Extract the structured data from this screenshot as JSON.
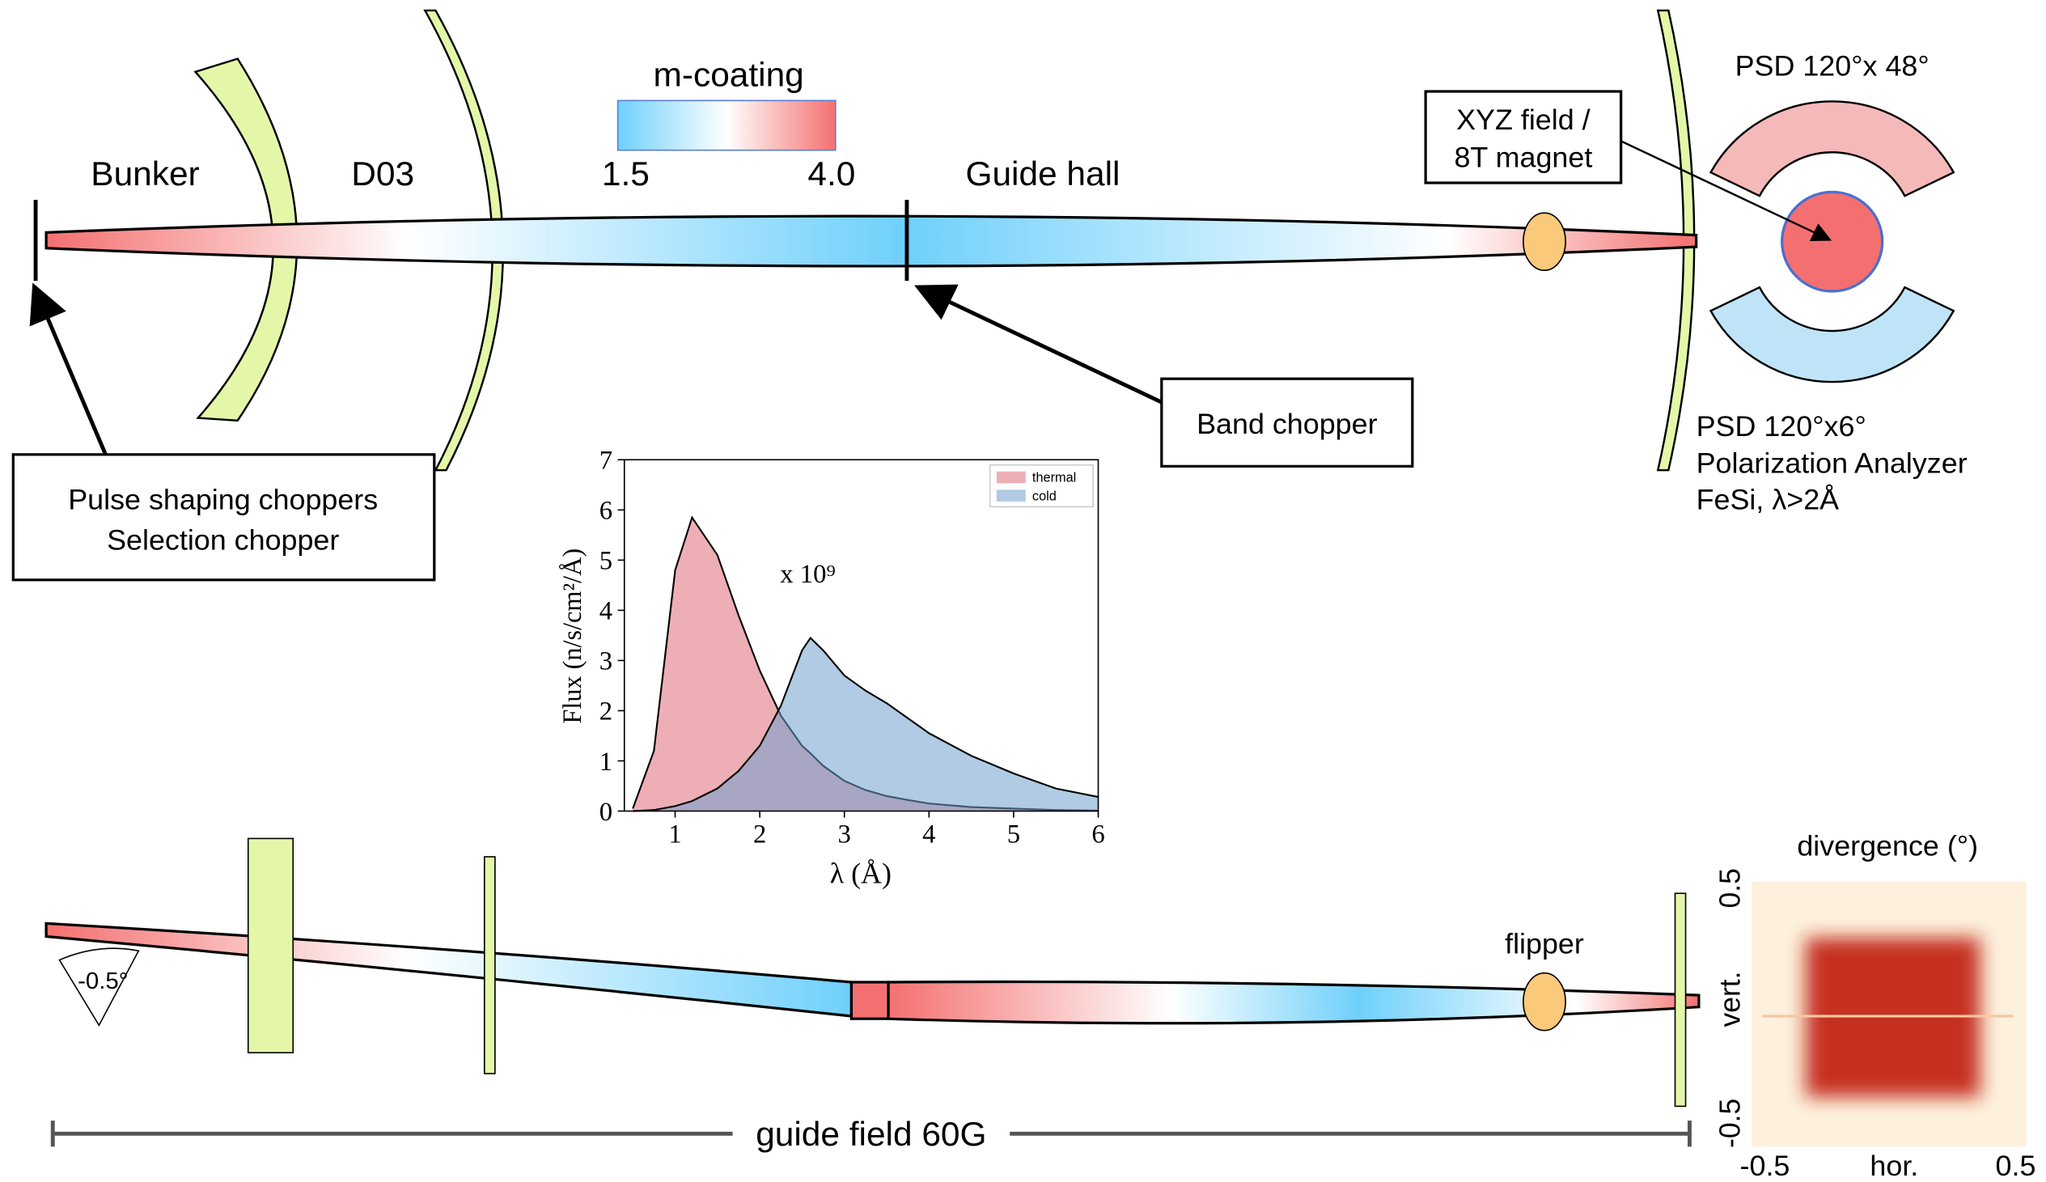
{
  "top": {
    "bunker": "Bunker",
    "d03": "D03",
    "coating_title": "m-coating",
    "coating_min": "1.5",
    "coating_max": "4.0",
    "guide_hall": "Guide hall",
    "magnet_box": [
      "XYZ field /",
      "8T  magnet"
    ],
    "psd_top": "PSD 120°x 48°",
    "band_chopper": "Band chopper",
    "psd_bottom": [
      "PSD 120°x6°",
      "Polarization Analyzer",
      "FeSi,  λ>2Å"
    ],
    "pulse_box": [
      "Pulse shaping choppers",
      "Selection chopper"
    ]
  },
  "bottom": {
    "angle": "-0.5°",
    "flipper": "flipper",
    "guide_field": "guide field 60G"
  },
  "divergence": {
    "title": "divergence (°)",
    "y_label": "vert.",
    "x_label": "hor.",
    "y_top": "0.5",
    "y_bottom": "-0.5",
    "x_left": "-0.5",
    "x_right": "0.5"
  },
  "chart_data": {
    "type": "area",
    "y_label": "Flux (n/s/cm²/Å)",
    "x_label": "λ (Å)",
    "annotation": "x 10⁹",
    "x": [
      0.5,
      0.75,
      1,
      1.2,
      1.5,
      1.75,
      2,
      2.25,
      2.5,
      2.6,
      2.75,
      3,
      3.25,
      3.5,
      3.75,
      4,
      4.5,
      5,
      5.5,
      6
    ],
    "series": [
      {
        "name": "thermal",
        "color": "#e06c78",
        "values": [
          0.05,
          1.2,
          4.8,
          5.85,
          5.1,
          3.9,
          2.8,
          1.9,
          1.3,
          1.15,
          0.9,
          0.6,
          0.42,
          0.3,
          0.22,
          0.15,
          0.08,
          0.05,
          0.02,
          0.01
        ]
      },
      {
        "name": "cold",
        "color": "#6fa0cc",
        "values": [
          0,
          0.02,
          0.1,
          0.2,
          0.45,
          0.8,
          1.3,
          2.1,
          3.2,
          3.45,
          3.2,
          2.7,
          2.4,
          2.15,
          1.85,
          1.55,
          1.1,
          0.75,
          0.45,
          0.28
        ]
      }
    ],
    "xlim": [
      0.4,
      6
    ],
    "ylim": [
      0,
      7
    ],
    "xticks": [
      1,
      2,
      3,
      4,
      5,
      6
    ],
    "yticks": [
      0,
      1,
      2,
      3,
      4,
      5,
      6,
      7
    ],
    "legend": "upper right"
  }
}
